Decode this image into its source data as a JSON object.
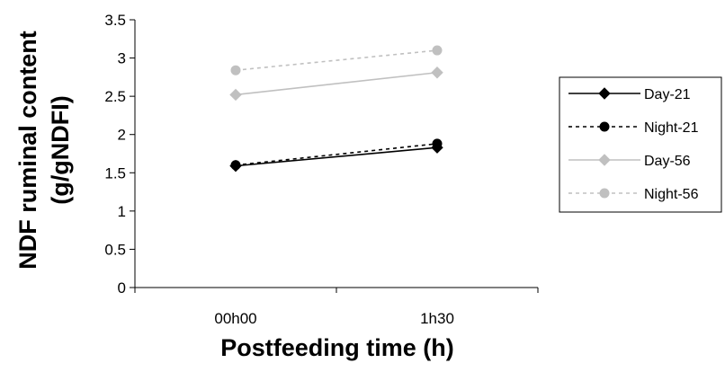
{
  "chart_data": {
    "type": "line",
    "title": "",
    "xlabel": "Postfeeding time (h)",
    "ylabel_line1": "NDF ruminal content",
    "ylabel_line2": "(g/gNDFI)",
    "categories": [
      "00h00",
      "1h30"
    ],
    "ylim": [
      0,
      3.5
    ],
    "yticks": [
      "0",
      "0.5",
      "1",
      "1.5",
      "2",
      "2.5",
      "3",
      "3.5"
    ],
    "grid": false,
    "legend_position": "right",
    "series": [
      {
        "name": "Day-21",
        "values": [
          1.59,
          1.83
        ],
        "color": "#000000",
        "dash": "solid",
        "marker": "diamond"
      },
      {
        "name": "Night-21",
        "values": [
          1.6,
          1.88
        ],
        "color": "#000000",
        "dash": "dashed",
        "marker": "circle"
      },
      {
        "name": "Day-56",
        "values": [
          2.52,
          2.81
        ],
        "color": "#c0c0c0",
        "dash": "solid",
        "marker": "diamond"
      },
      {
        "name": "Night-56",
        "values": [
          2.84,
          3.1
        ],
        "color": "#c0c0c0",
        "dash": "dashed",
        "marker": "circle"
      }
    ]
  }
}
